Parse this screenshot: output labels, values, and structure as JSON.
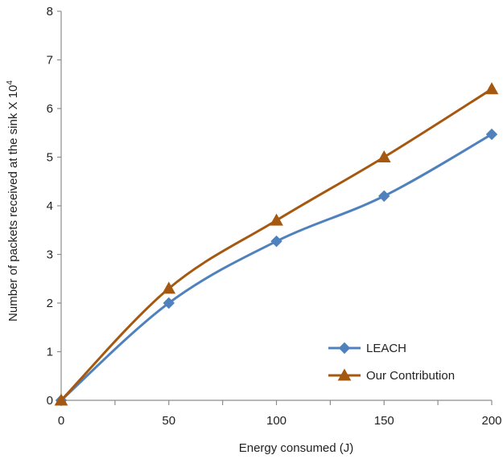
{
  "chart_data": {
    "type": "line",
    "title": "",
    "xlabel": "Energy consumed (J)",
    "ylabel": "Number of packets received at the sink X 10",
    "ylabel_superscript": "4",
    "xlim": [
      0,
      200
    ],
    "ylim": [
      0,
      8
    ],
    "x_ticks": [
      0,
      50,
      100,
      150,
      200
    ],
    "x_tick_labels": [
      "0",
      "50",
      "100",
      "150",
      "200"
    ],
    "y_ticks": [
      0,
      1,
      2,
      3,
      4,
      5,
      6,
      7,
      8
    ],
    "y_tick_labels": [
      "0",
      "1",
      "2",
      "3",
      "4",
      "5",
      "6",
      "7",
      "8"
    ],
    "x_minor_ticks": [
      25,
      75,
      125,
      175
    ],
    "grid": false,
    "legend_position": "bottom-right",
    "x": [
      0,
      50,
      100,
      150,
      200
    ],
    "series": [
      {
        "name": "LEACH",
        "values": [
          0,
          2.0,
          3.27,
          4.2,
          5.47
        ],
        "color": "#4f81bd",
        "marker": "diamond"
      },
      {
        "name": "Our Contribution",
        "values": [
          0,
          2.3,
          3.7,
          5.0,
          6.4
        ],
        "color": "#a5580f",
        "marker": "triangle"
      }
    ]
  }
}
